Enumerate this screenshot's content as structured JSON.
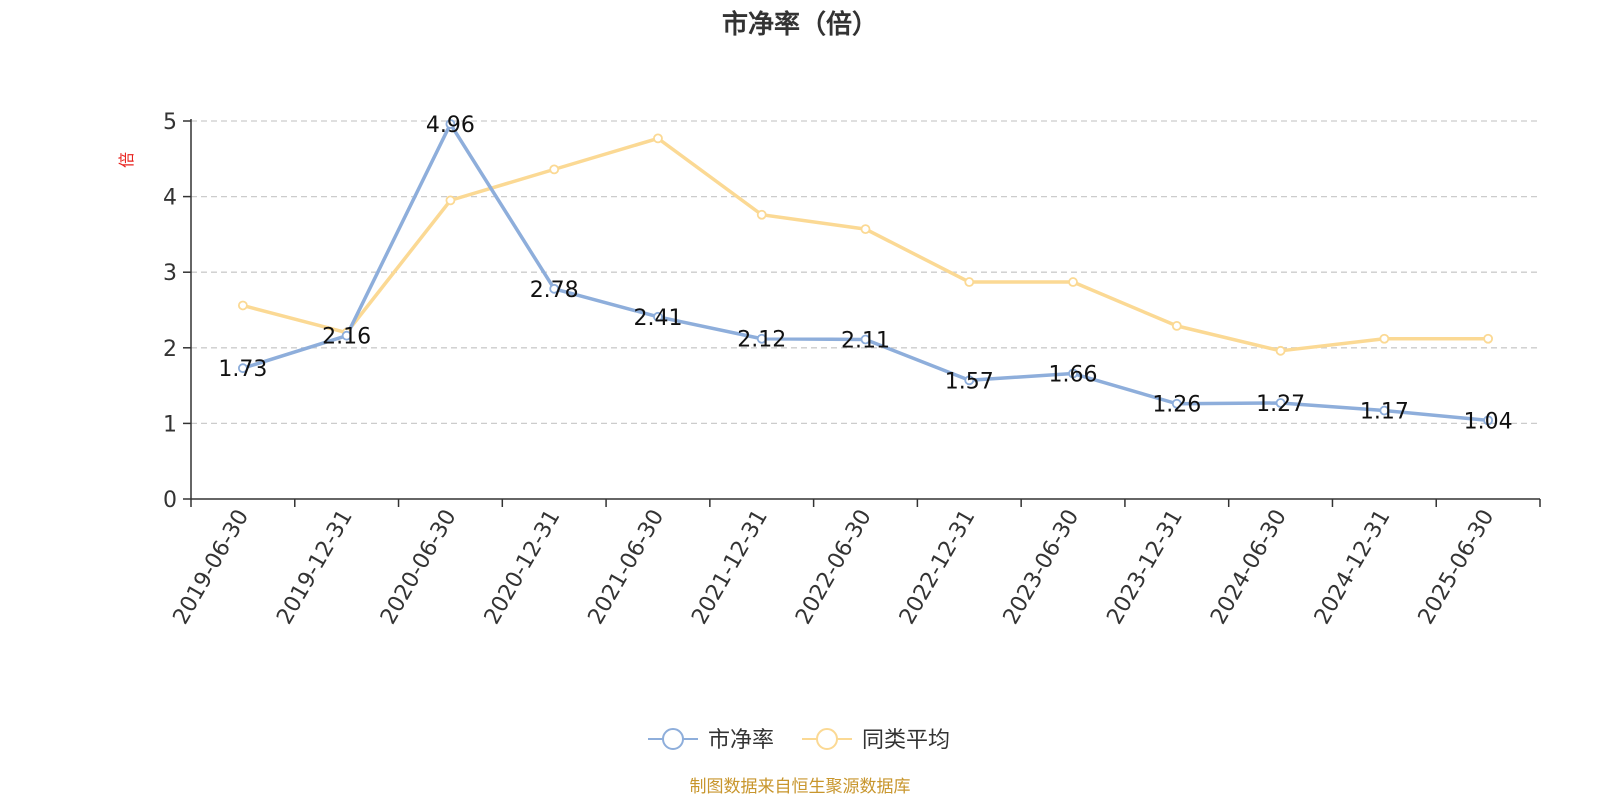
{
  "chart_data": {
    "type": "line",
    "title": "市净率（倍）",
    "ylabel": "倍",
    "xlabel": "",
    "ylim": [
      0,
      5
    ],
    "yticks": [
      0,
      1,
      2,
      3,
      4,
      5
    ],
    "grid": true,
    "legend_position": "bottom-center",
    "categories": [
      "2019-06-30",
      "2019-12-31",
      "2020-06-30",
      "2020-12-31",
      "2021-06-30",
      "2021-12-31",
      "2022-06-30",
      "2022-12-31",
      "2023-06-30",
      "2023-12-31",
      "2024-06-30",
      "2024-12-31",
      "2025-06-30"
    ],
    "series": [
      {
        "name": "市净率",
        "color": "#8eaedb",
        "values": [
          1.73,
          2.16,
          4.96,
          2.78,
          2.41,
          2.12,
          2.11,
          1.57,
          1.66,
          1.26,
          1.27,
          1.17,
          1.04
        ],
        "labels": [
          "1.73",
          "2.16",
          "4.96",
          "2.78",
          "2.41",
          "2.12",
          "2.11",
          "1.57",
          "1.66",
          "1.26",
          "1.27",
          "1.17",
          "1.04"
        ]
      },
      {
        "name": "同类平均",
        "color": "#fbd994",
        "values": [
          2.56,
          2.2,
          3.95,
          4.36,
          4.77,
          3.76,
          3.57,
          2.87,
          2.87,
          2.29,
          1.96,
          2.12,
          2.12
        ]
      }
    ]
  },
  "source": "制图数据来自恒生聚源数据库"
}
